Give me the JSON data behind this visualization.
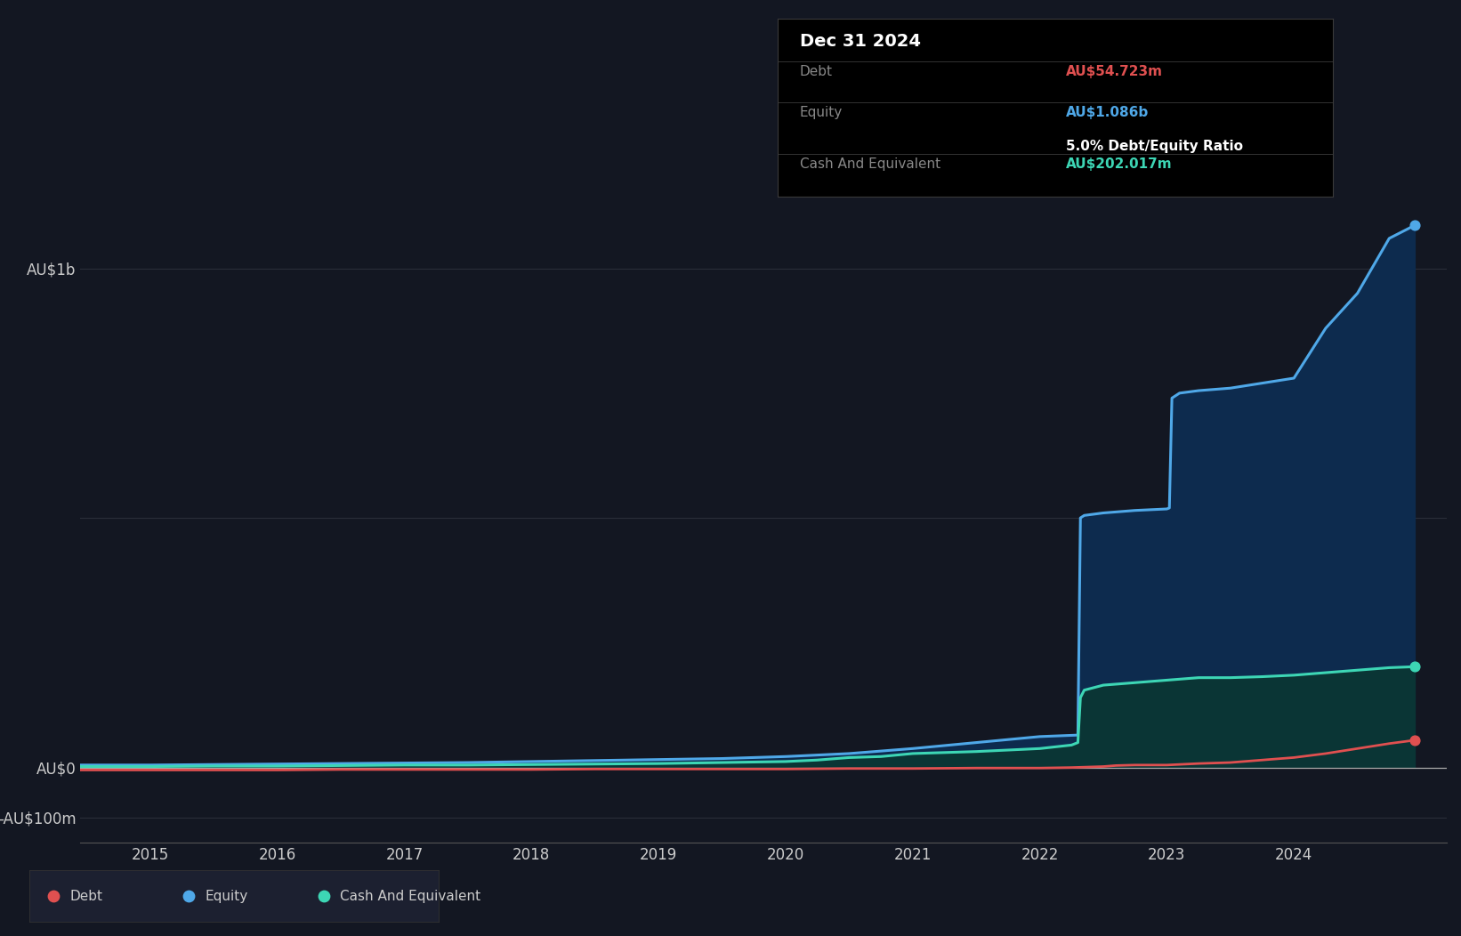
{
  "background_color": "#131722",
  "plot_bg_color": "#131722",
  "grid_color": "#2a2e39",
  "title_box": {
    "date": "Dec 31 2024",
    "debt_label": "Debt",
    "debt_value": "AU$54.723m",
    "equity_label": "Equity",
    "equity_value": "AU$1.086b",
    "ratio_text": "5.0% Debt/Equity Ratio",
    "cash_label": "Cash And Equivalent",
    "cash_value": "AU$202.017m",
    "bg": "#000000",
    "text_color": "#888888",
    "date_color": "#ffffff",
    "debt_val_color": "#e05050",
    "equity_val_color": "#4fa8e8",
    "ratio_color": "#ffffff",
    "cash_val_color": "#3dd6b5"
  },
  "ylim": [
    -150,
    1200
  ],
  "xlim": [
    2014.45,
    2025.2
  ],
  "xtick_years": [
    2015,
    2016,
    2017,
    2018,
    2019,
    2020,
    2021,
    2022,
    2023,
    2024
  ],
  "legend": [
    {
      "label": "Debt",
      "color": "#e05050"
    },
    {
      "label": "Equity",
      "color": "#4fa8e8"
    },
    {
      "label": "Cash And Equivalent",
      "color": "#3dd6b5"
    }
  ],
  "debt_data": {
    "x": [
      2014.45,
      2015.0,
      2015.5,
      2016.0,
      2016.5,
      2017.0,
      2017.5,
      2018.0,
      2018.5,
      2019.0,
      2019.5,
      2020.0,
      2020.5,
      2021.0,
      2021.5,
      2022.0,
      2022.25,
      2022.5,
      2022.6,
      2022.75,
      2023.0,
      2023.25,
      2023.5,
      2023.75,
      2024.0,
      2024.25,
      2024.5,
      2024.75,
      2024.95
    ],
    "y": [
      -5,
      -5,
      -5,
      -5,
      -4,
      -4,
      -4,
      -4,
      -3,
      -3,
      -3,
      -3,
      -2,
      -2,
      -1,
      -1,
      0,
      2,
      4,
      5,
      5,
      8,
      10,
      15,
      20,
      28,
      38,
      48,
      54.723
    ]
  },
  "equity_data": {
    "x": [
      2014.45,
      2015.0,
      2015.5,
      2016.0,
      2016.5,
      2017.0,
      2017.5,
      2018.0,
      2018.5,
      2019.0,
      2019.5,
      2020.0,
      2020.5,
      2021.0,
      2021.5,
      2022.0,
      2022.3,
      2022.32,
      2022.35,
      2022.5,
      2022.75,
      2023.0,
      2023.02,
      2023.04,
      2023.1,
      2023.25,
      2023.5,
      2023.75,
      2024.0,
      2024.25,
      2024.5,
      2024.75,
      2024.95
    ],
    "y": [
      5,
      5,
      6,
      7,
      8,
      9,
      10,
      12,
      14,
      16,
      18,
      22,
      28,
      38,
      50,
      62,
      65,
      500,
      505,
      510,
      515,
      518,
      520,
      740,
      750,
      755,
      760,
      770,
      780,
      880,
      950,
      1060,
      1086
    ]
  },
  "cash_data": {
    "x": [
      2014.45,
      2015.0,
      2015.5,
      2016.0,
      2016.5,
      2017.0,
      2017.5,
      2018.0,
      2018.5,
      2019.0,
      2019.5,
      2020.0,
      2020.25,
      2020.5,
      2020.75,
      2021.0,
      2021.25,
      2021.5,
      2021.75,
      2022.0,
      2022.25,
      2022.3,
      2022.32,
      2022.35,
      2022.5,
      2022.75,
      2023.0,
      2023.25,
      2023.5,
      2023.75,
      2024.0,
      2024.25,
      2024.5,
      2024.75,
      2024.95
    ],
    "y": [
      2,
      2,
      3,
      3,
      4,
      5,
      5,
      6,
      7,
      8,
      10,
      12,
      15,
      20,
      22,
      28,
      30,
      32,
      35,
      38,
      45,
      50,
      140,
      155,
      165,
      170,
      175,
      180,
      180,
      182,
      185,
      190,
      195,
      200,
      202
    ]
  },
  "equity_fill_color": "#0d2b4e",
  "cash_fill_color": "#0a3535",
  "equity_line_color": "#4fa8e8",
  "cash_line_color": "#3dd6b5",
  "debt_line_color": "#e05050"
}
